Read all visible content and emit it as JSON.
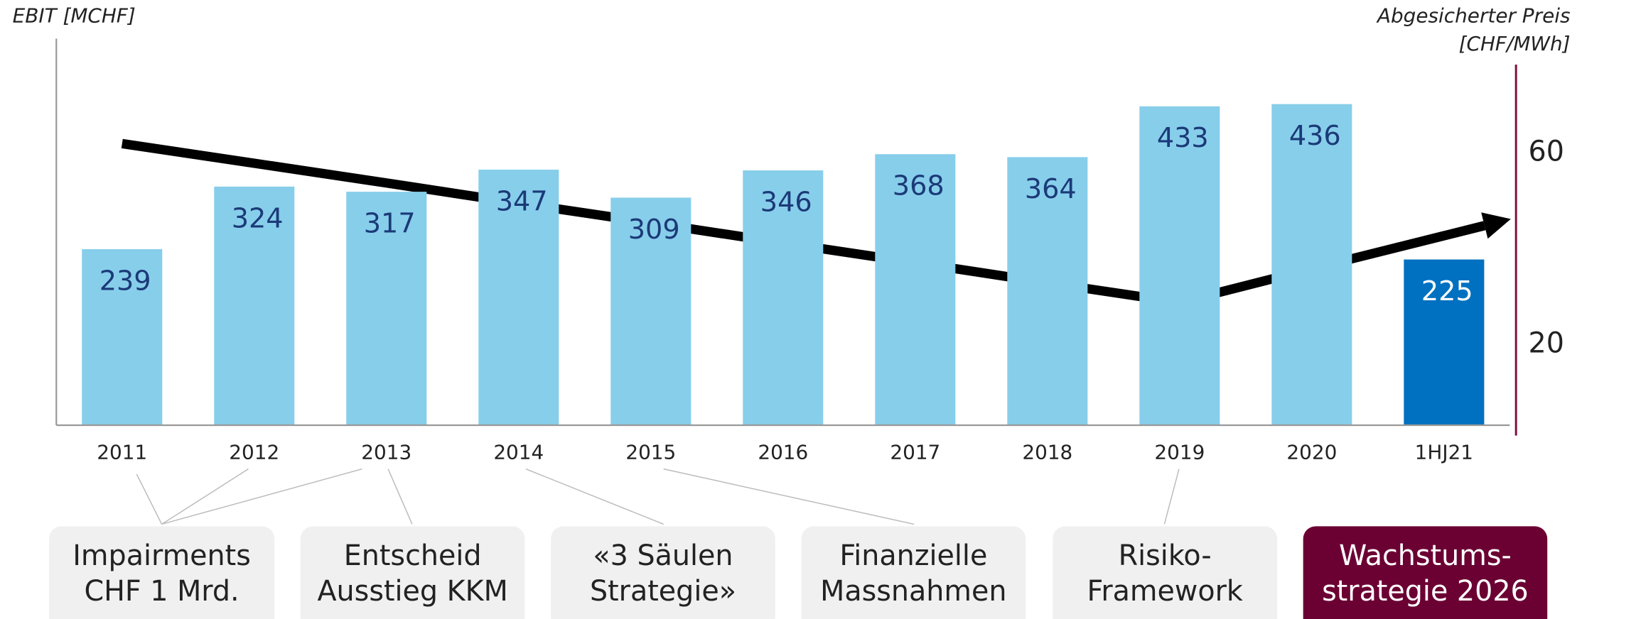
{
  "chart_data": {
    "type": "bar",
    "ylabel": "EBIT [MCHF]",
    "y2label": [
      "Abgesicherter Preis",
      "[CHF/MWh]"
    ],
    "categories": [
      "2011",
      "2012",
      "2013",
      "2014",
      "2015",
      "2016",
      "2017",
      "2018",
      "2019",
      "2020",
      "1HJ21"
    ],
    "values": [
      239,
      324,
      317,
      347,
      309,
      346,
      368,
      364,
      433,
      436,
      225
    ],
    "colors": [
      "#87ceea",
      "#87ceea",
      "#87ceea",
      "#87ceea",
      "#87ceea",
      "#87ceea",
      "#87ceea",
      "#87ceea",
      "#87ceea",
      "#87ceea",
      "#0070c0"
    ],
    "ylim": [
      0,
      525
    ],
    "line": {
      "type": "line",
      "axis": "y2",
      "color": "#000000",
      "values": [
        62.0,
        57.9,
        53.8,
        49.6,
        45.5,
        41.3,
        37.2,
        33.0,
        28.9,
        35.9,
        42.8
      ]
    },
    "y2lim": [
      3.3,
      83.9
    ],
    "y2ticks": [
      20,
      60
    ],
    "annotations": [
      [
        "Impairments",
        "CHF 1 Mrd."
      ],
      [
        "Entscheid",
        "Ausstieg KKM"
      ],
      [
        "«3 Säulen",
        "Strategie»"
      ],
      [
        "Finanzielle",
        "Massnahmen"
      ],
      [
        "Risiko-",
        "Framework"
      ],
      [
        "Wachstums-",
        "strategie 2026"
      ]
    ]
  }
}
